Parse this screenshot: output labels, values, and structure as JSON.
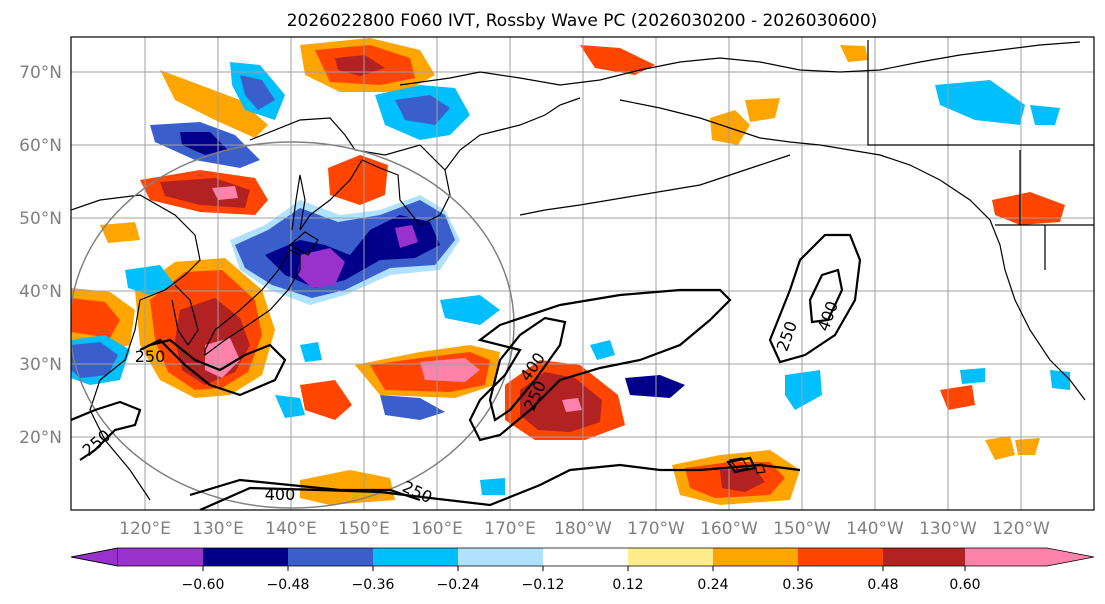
{
  "title": "2026022800 F060 IVT, Rossby Wave PC (2026030200 - 2026030600)",
  "map": {
    "lat_ticks": [
      "70°N",
      "60°N",
      "50°N",
      "40°N",
      "30°N",
      "20°N"
    ],
    "lon_ticks": [
      "120°E",
      "130°E",
      "140°E",
      "150°E",
      "160°E",
      "170°E",
      "180°W",
      "170°W",
      "160°W",
      "150°W",
      "140°W",
      "130°W",
      "120°W"
    ],
    "contour_labels": [
      "250",
      "250",
      "250",
      "250",
      "400",
      "400",
      "400",
      "250"
    ]
  },
  "colorbar": {
    "ticks": [
      "−0.60",
      "−0.48",
      "−0.36",
      "−0.24",
      "−0.12",
      "0.12",
      "0.24",
      "0.36",
      "0.48",
      "0.60"
    ],
    "colors": [
      "#9932cc",
      "#00008b",
      "#3a5fcd",
      "#00bfff",
      "#b0e2ff",
      "#ffffff",
      "#ffec8b",
      "#ffa500",
      "#ff4500",
      "#b22222",
      "#ff82ab"
    ]
  }
}
